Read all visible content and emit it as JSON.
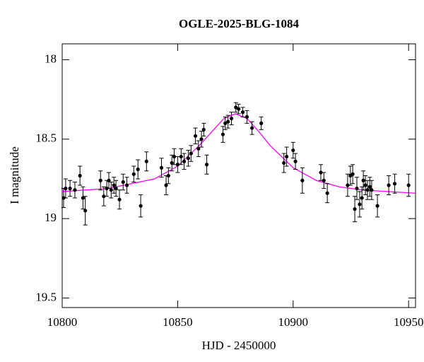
{
  "chart_data": {
    "type": "scatter",
    "title": "OGLE-2025-BLG-1084",
    "xlabel": "HJD - 2450000",
    "ylabel": "I magnitude",
    "xlim": [
      10800,
      10953
    ],
    "ylim": [
      17.9,
      19.56
    ],
    "y_inverted": true,
    "xticks": [
      10800,
      10850,
      10900,
      10950
    ],
    "yticks": [
      18,
      18.5,
      19,
      19.5
    ],
    "series": [
      {
        "style": "points",
        "color": "#000000",
        "x": [
          10800.6,
          10801.5,
          10803.4,
          10805.5,
          10807.7,
          10809,
          10810,
          10816.6,
          10818,
          10819.3,
          10820.2,
          10821.2,
          10822.4,
          10823.3,
          10824.8,
          10826.4,
          10828,
          10831,
          10832.8,
          10834,
          10836.5,
          10843,
          10845,
          10846,
          10847.5,
          10848.5,
          10850,
          10851.5,
          10852.8,
          10854.6,
          10855.8,
          10857.7,
          10859,
          10860.3,
          10861.3,
          10862.6,
          10869.6,
          10870.6,
          10871.8,
          10873.3,
          10875.2,
          10876.4,
          10878.2,
          10880,
          10882.2,
          10886.2,
          10896,
          10897.2,
          10900,
          10901,
          10904,
          10912,
          10913.3,
          10914.8,
          10923.6,
          10924.8,
          10925.8,
          10926.7,
          10927.6,
          10928.8,
          10929.8,
          10930.4,
          10931.3,
          10932.2,
          10933.2,
          10934,
          10936.5,
          10941.4,
          10944,
          10950
        ],
        "values": [
          18.87,
          18.81,
          18.81,
          18.82,
          18.73,
          18.87,
          18.95,
          18.76,
          18.86,
          18.81,
          18.76,
          18.82,
          18.79,
          18.81,
          18.88,
          18.77,
          18.79,
          18.72,
          18.69,
          18.92,
          18.64,
          18.68,
          18.79,
          18.73,
          18.65,
          18.61,
          18.66,
          18.61,
          18.64,
          18.62,
          18.59,
          18.48,
          18.56,
          18.5,
          18.44,
          18.66,
          18.47,
          18.4,
          18.39,
          18.37,
          18.3,
          18.31,
          18.33,
          18.36,
          18.43,
          18.4,
          18.65,
          18.61,
          18.57,
          18.64,
          18.76,
          18.71,
          18.76,
          18.84,
          18.79,
          18.73,
          18.72,
          18.94,
          18.81,
          18.91,
          18.87,
          18.76,
          18.79,
          18.82,
          18.8,
          18.82,
          18.92,
          18.79,
          18.78,
          18.79
        ],
        "errors": [
          0.06,
          0.06,
          0.05,
          0.05,
          0.06,
          0.07,
          0.09,
          0.06,
          0.06,
          0.05,
          0.05,
          0.05,
          0.05,
          0.05,
          0.06,
          0.05,
          0.05,
          0.05,
          0.06,
          0.07,
          0.06,
          0.06,
          0.06,
          0.05,
          0.05,
          0.05,
          0.05,
          0.05,
          0.05,
          0.05,
          0.05,
          0.05,
          0.05,
          0.05,
          0.04,
          0.06,
          0.05,
          0.04,
          0.04,
          0.04,
          0.03,
          0.03,
          0.03,
          0.04,
          0.04,
          0.04,
          0.06,
          0.06,
          0.05,
          0.05,
          0.08,
          0.05,
          0.05,
          0.06,
          0.07,
          0.06,
          0.06,
          0.08,
          0.07,
          0.08,
          0.07,
          0.06,
          0.06,
          0.06,
          0.06,
          0.06,
          0.07,
          0.06,
          0.06,
          0.07
        ]
      },
      {
        "style": "line",
        "color": "#ff00ff",
        "x": [
          10800,
          10820,
          10840,
          10850,
          10860,
          10865,
          10870,
          10875,
          10880,
          10885,
          10890,
          10900,
          10910,
          10920,
          10930,
          10953
        ],
        "values": [
          18.83,
          18.81,
          18.75,
          18.67,
          18.53,
          18.45,
          18.37,
          18.34,
          18.37,
          18.45,
          18.54,
          18.68,
          18.76,
          18.8,
          18.82,
          18.84
        ]
      }
    ]
  }
}
